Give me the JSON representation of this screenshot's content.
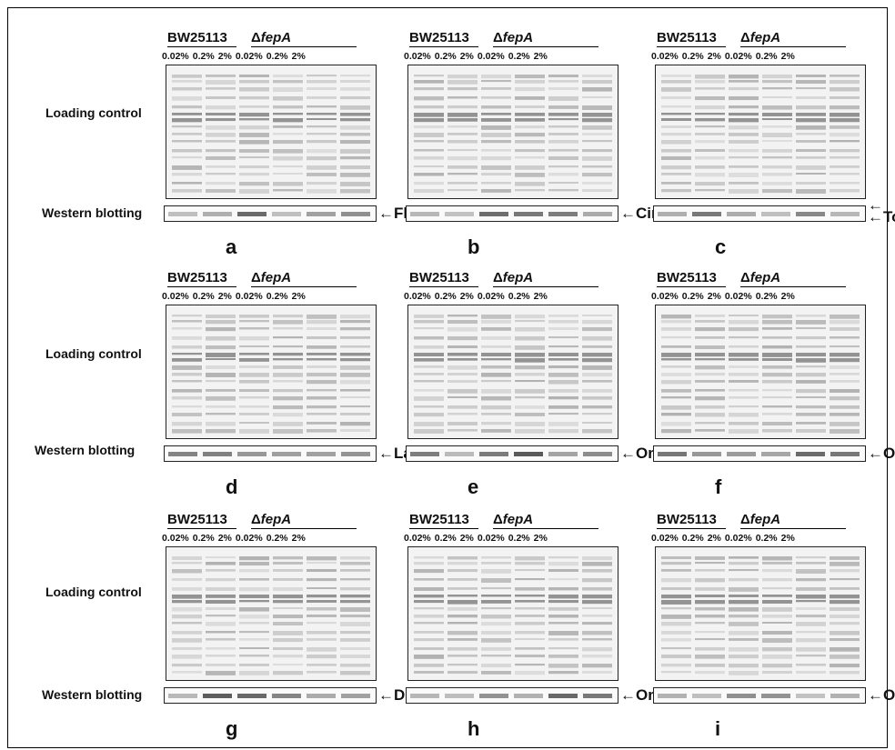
{
  "row_labels": {
    "loading_control": "Loading control",
    "western_blotting": "Western blotting"
  },
  "strain_labels": {
    "wild_type": "BW25113",
    "mutant_delta": "Δ",
    "mutant_gene": "fepA"
  },
  "concentrations": [
    "0.02%",
    "0.2%",
    "2%",
    "0.02%",
    "0.2%",
    "2%"
  ],
  "panels": [
    {
      "letter": "a",
      "protein": "FhuE"
    },
    {
      "letter": "b",
      "protein": "CirA"
    },
    {
      "letter": "c",
      "protein": "TolC"
    },
    {
      "letter": "d",
      "protein": "LamB"
    },
    {
      "letter": "e",
      "protein": "OmpF"
    },
    {
      "letter": "f",
      "protein": "OmpT"
    },
    {
      "letter": "g",
      "protein": "Dps"
    },
    {
      "letter": "h",
      "protein": "OmpC"
    },
    {
      "letter": "i",
      "protein": "OmpW"
    }
  ]
}
